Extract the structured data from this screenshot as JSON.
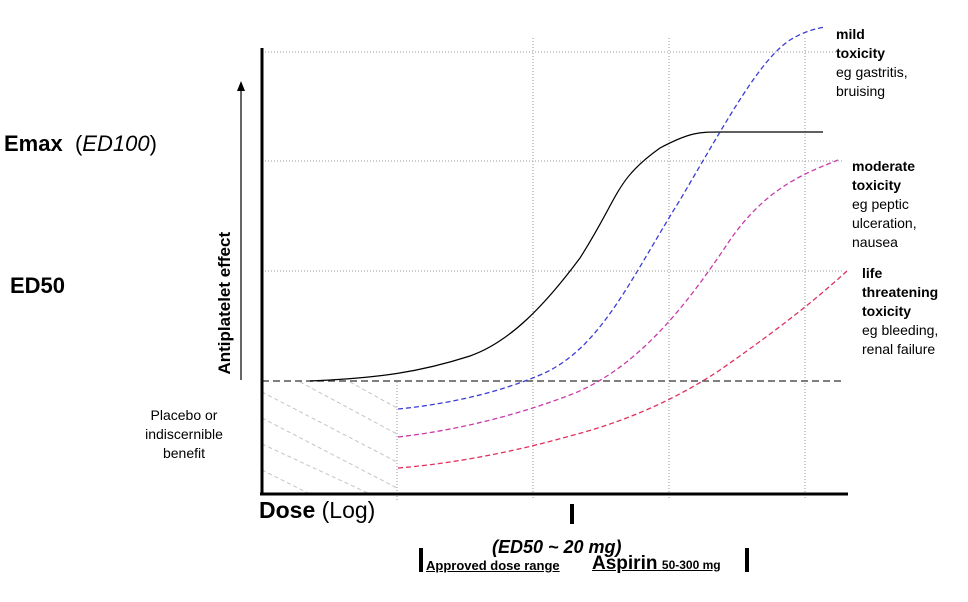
{
  "labels": {
    "emax": "Emax",
    "ed100": "ED100",
    "ed50": "ED50",
    "y_axis": "Antiplatelet effect",
    "x_axis": "Dose",
    "x_axis_unit": "(Log)",
    "placebo_1": "Placebo or",
    "placebo_2": "indiscernible",
    "placebo_3": "benefit",
    "ed50_dose": "(ED50 ~ 20 mg)",
    "approved_range": "Approved dose range",
    "aspirin": "Aspirin",
    "aspirin_range": "50-300 mg"
  },
  "annotations": {
    "mild": {
      "title_1": "mild",
      "title_2": "toxicity",
      "detail_1": "eg gastritis,",
      "detail_2": "bruising"
    },
    "moderate": {
      "title_1": "moderate",
      "title_2": "toxicity",
      "detail_1": "eg peptic",
      "detail_2": "ulceration,",
      "detail_3": "nausea"
    },
    "life": {
      "title_1": "life",
      "title_2": "threatening",
      "title_3": "toxicity",
      "detail_1": "eg bleeding,",
      "detail_2": "renal failure"
    }
  },
  "colors": {
    "efficacy": "#000000",
    "mild": "#3b3bd6",
    "moderate": "#c93aa8",
    "life": "#e0305c",
    "grid": "#9a9a9a"
  }
}
